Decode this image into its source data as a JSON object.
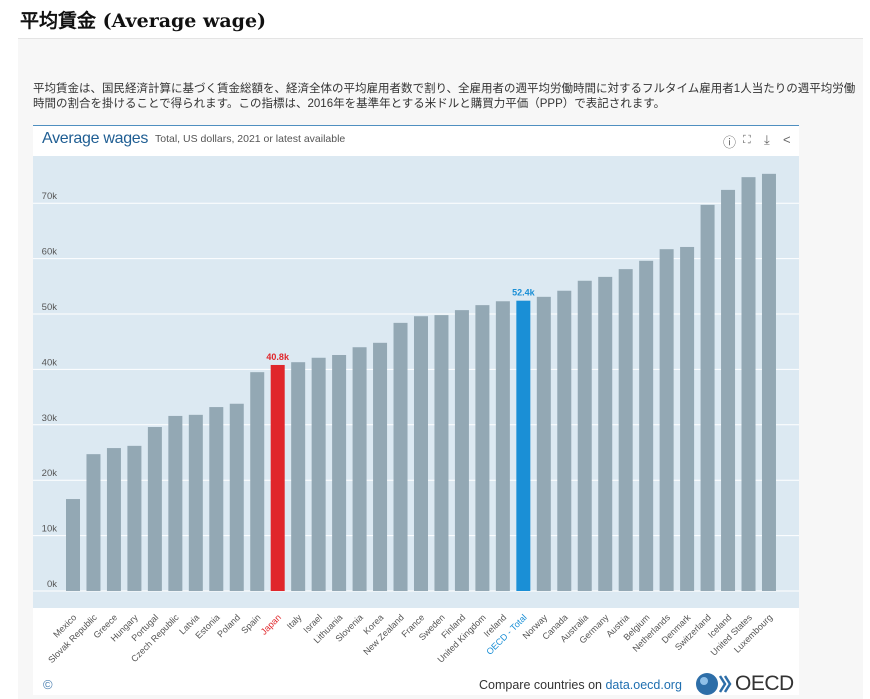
{
  "page": {
    "title": "平均賃金 (Average wage)",
    "description": "平均賃金は、国民経済計算に基づく賃金総額を、経済全体の平均雇用者数で割り、全雇用者の週平均労働時間に対するフルタイム雇用者1人当たりの週平均労働時間の割合を掛けることで得られます。この指標は、2016年を基準年とする米ドルと購買力平価（PPP）で表記されます。"
  },
  "toolbar": {
    "icons": [
      "info-icon",
      "fullscreen-icon",
      "download-icon",
      "share-icon"
    ]
  },
  "footer": {
    "copyright": "©",
    "compare_prefix": "Compare countries on ",
    "compare_link": "data.oecd.org",
    "logo": "OECD"
  },
  "chart_data": {
    "type": "bar",
    "title": "Average wages",
    "subtitle": "Total, US dollars, 2021 or latest available",
    "ylim": [
      0,
      75000
    ],
    "yticks": [
      "0k",
      "10k",
      "20k",
      "30k",
      "40k",
      "50k",
      "60k",
      "70k"
    ],
    "grid": true,
    "colors": {
      "default": "#93a8b4",
      "highlight": "#e0262b",
      "oecd": "#1a8fd6",
      "plot_bg": "#dce9f2"
    },
    "categories": [
      "Mexico",
      "Slovak Republic",
      "Greece",
      "Hungary",
      "Portugal",
      "Czech Republic",
      "Latvia",
      "Estonia",
      "Poland",
      "Spain",
      "Japan",
      "Italy",
      "Israel",
      "Lithuania",
      "Slovenia",
      "Korea",
      "New Zealand",
      "France",
      "Sweden",
      "Finland",
      "United Kingdom",
      "Ireland",
      "OECD - Total",
      "Norway",
      "Canada",
      "Australia",
      "Germany",
      "Austria",
      "Belgium",
      "Netherlands",
      "Denmark",
      "Switzerland",
      "Iceland",
      "United States",
      "Luxembourg"
    ],
    "values": [
      16600,
      24700,
      25800,
      26200,
      29600,
      31600,
      31800,
      33200,
      33800,
      39500,
      40800,
      41300,
      42100,
      42600,
      44000,
      44800,
      48400,
      49600,
      49800,
      50700,
      51600,
      52300,
      52400,
      53100,
      54200,
      56000,
      56700,
      58100,
      59600,
      61700,
      62100,
      69700,
      72400,
      74700,
      75300
    ],
    "highlight": {
      "Japan": "40.8k",
      "OECD - Total": "52.4k"
    }
  }
}
